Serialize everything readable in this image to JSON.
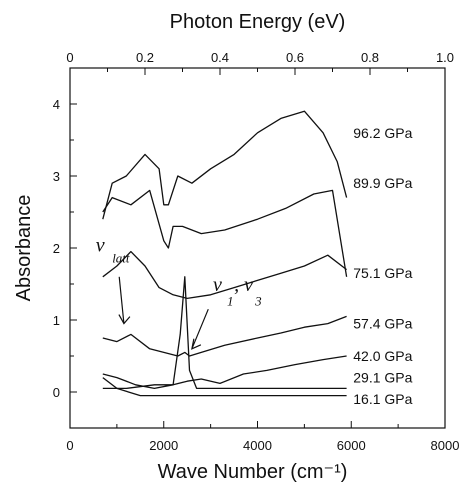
{
  "chart_data": {
    "type": "line",
    "title": "",
    "xlabel": "Wave Number (cm⁻¹)",
    "ylabel": "Absorbance",
    "top_xlabel": "Photon Energy (eV)",
    "xlim": [
      0,
      8000
    ],
    "ylim": [
      -0.5,
      4.5
    ],
    "top_xlim": [
      0,
      1.0
    ],
    "x_ticks": [
      "0",
      "2000",
      "4000",
      "6000",
      "8000"
    ],
    "y_ticks": [
      "0",
      "1",
      "2",
      "3",
      "4"
    ],
    "top_x_ticks": [
      "0",
      "0.2",
      "0.4",
      "0.6",
      "0.8",
      "1.0"
    ],
    "grid": false,
    "series": [
      {
        "name": "96.2 GPa",
        "x": [
          700,
          900,
          1200,
          1600,
          1900,
          2000,
          2100,
          2300,
          2600,
          3000,
          3500,
          4000,
          4500,
          5000,
          5400,
          5700,
          5900
        ],
        "values": [
          2.4,
          2.9,
          3.0,
          3.3,
          3.1,
          2.6,
          2.6,
          3.0,
          2.9,
          3.1,
          3.3,
          3.6,
          3.8,
          3.9,
          3.6,
          3.2,
          2.7
        ]
      },
      {
        "name": "89.9 GPa",
        "x": [
          700,
          900,
          1300,
          1700,
          2000,
          2100,
          2200,
          2400,
          2800,
          3300,
          4000,
          4600,
          5200,
          5600,
          5900
        ],
        "values": [
          2.5,
          2.7,
          2.6,
          2.8,
          2.1,
          2.0,
          2.3,
          2.3,
          2.2,
          2.25,
          2.4,
          2.55,
          2.75,
          2.8,
          1.6
        ]
      },
      {
        "name": "75.1 GPa",
        "x": [
          700,
          1000,
          1300,
          1600,
          1900,
          2200,
          2500,
          3000,
          3500,
          4000,
          4500,
          5000,
          5500,
          5900
        ],
        "values": [
          1.6,
          1.75,
          1.95,
          1.75,
          1.45,
          1.35,
          1.3,
          1.35,
          1.45,
          1.55,
          1.65,
          1.75,
          1.9,
          1.7
        ]
      },
      {
        "name": "57.4 GPa",
        "x": [
          700,
          1000,
          1300,
          1700,
          2000,
          2300,
          2450,
          2550,
          2800,
          3300,
          4000,
          4500,
          5000,
          5500,
          5900
        ],
        "values": [
          0.75,
          0.7,
          0.8,
          0.6,
          0.55,
          0.5,
          0.55,
          0.5,
          0.55,
          0.65,
          0.75,
          0.82,
          0.9,
          0.95,
          1.05
        ]
      },
      {
        "name": "42.0 GPa",
        "x": [
          700,
          1200,
          1800,
          2200,
          2500,
          2800,
          3200,
          3700,
          4200,
          4800,
          5400,
          5900
        ],
        "values": [
          0.05,
          0.05,
          0.1,
          0.1,
          0.15,
          0.18,
          0.12,
          0.25,
          0.3,
          0.38,
          0.45,
          0.5
        ]
      },
      {
        "name": "29.1 GPa",
        "x": [
          700,
          1000,
          1400,
          1800,
          2200,
          2350,
          2450,
          2550,
          2700,
          3000,
          4000,
          5000,
          5900
        ],
        "values": [
          0.25,
          0.2,
          0.1,
          0.05,
          0.1,
          0.8,
          1.6,
          0.3,
          0.05,
          0.05,
          0.05,
          0.05,
          0.05
        ]
      },
      {
        "name": "16.1 GPa",
        "x": [
          700,
          1000,
          1500,
          2000,
          2500,
          3000,
          3500,
          4000,
          4500,
          5000,
          5500,
          5900
        ],
        "values": [
          0.2,
          0.05,
          -0.05,
          -0.05,
          -0.05,
          -0.05,
          -0.05,
          -0.05,
          -0.05,
          -0.05,
          -0.05,
          -0.05
        ]
      }
    ],
    "annotations": [
      {
        "text": "ν",
        "sub": "latt"
      },
      {
        "text": "ν",
        "sub": "1",
        "text2": ", ν",
        "sub2": "3"
      }
    ]
  }
}
